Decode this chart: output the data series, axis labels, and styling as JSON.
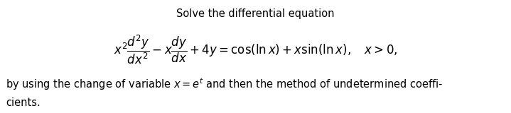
{
  "title": "Solve the differential equation",
  "equation": "$x^2\\dfrac{d^2y}{dx^2} - x\\dfrac{dy}{dx} + 4y = \\cos(\\ln x) + x\\sin(\\ln x), \\quad x > 0,$",
  "body_line1": "by using the change of variable $x = e^t$ and then the method of undetermined coeffi-",
  "body_line2": "cients.",
  "bg_color": "#ffffff",
  "text_color": "#000000",
  "title_fontsize": 10.5,
  "eq_fontsize": 12,
  "body_fontsize": 10.5
}
